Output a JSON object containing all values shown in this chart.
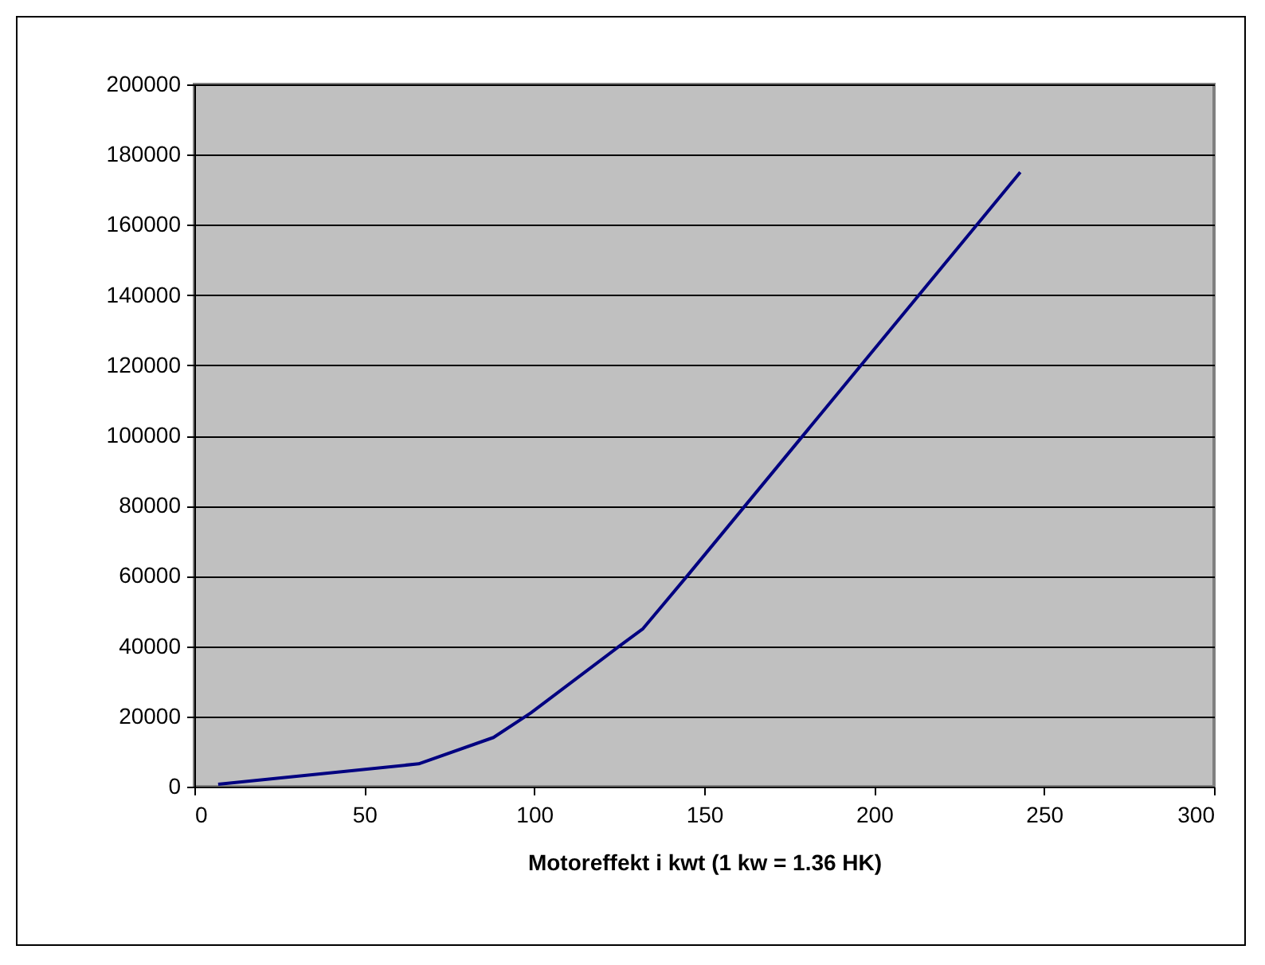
{
  "chart_data": {
    "type": "line",
    "xlabel": "Motoreffekt i kwt (1 kw = 1.36 HK)",
    "x": [
      7,
      66,
      88,
      99,
      125,
      132,
      145,
      243
    ],
    "series": [
      {
        "color": "#000080",
        "values": [
          700,
          6500,
          14000,
          21000,
          40000,
          45000,
          60000,
          175000
        ]
      }
    ],
    "xlim": [
      0,
      300
    ],
    "xticks": [
      0,
      50,
      100,
      150,
      200,
      250,
      300
    ],
    "ylim": [
      0,
      200000
    ],
    "yticks": [
      0,
      20000,
      40000,
      60000,
      80000,
      100000,
      120000,
      140000,
      160000,
      180000,
      200000
    ],
    "grid": "y"
  }
}
